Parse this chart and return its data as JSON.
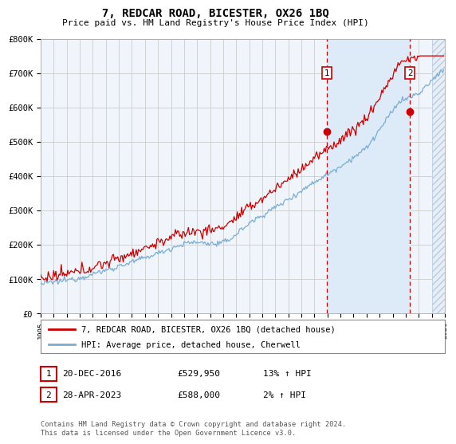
{
  "title": "7, REDCAR ROAD, BICESTER, OX26 1BQ",
  "subtitle": "Price paid vs. HM Land Registry's House Price Index (HPI)",
  "legend_line1": "7, REDCAR ROAD, BICESTER, OX26 1BQ (detached house)",
  "legend_line2": "HPI: Average price, detached house, Cherwell",
  "annotation1_date": "20-DEC-2016",
  "annotation1_price": "£529,950",
  "annotation1_hpi": "13% ↑ HPI",
  "annotation2_date": "28-APR-2023",
  "annotation2_price": "£588,000",
  "annotation2_hpi": "2% ↑ HPI",
  "footer": "Contains HM Land Registry data © Crown copyright and database right 2024.\nThis data is licensed under the Open Government Licence v3.0.",
  "hpi_color": "#7aadd4",
  "price_color": "#cc0000",
  "ylim": [
    0,
    800000
  ],
  "yticks": [
    0,
    100000,
    200000,
    300000,
    400000,
    500000,
    600000,
    700000,
    800000
  ],
  "ytick_labels": [
    "£0",
    "£100K",
    "£200K",
    "£300K",
    "£400K",
    "£500K",
    "£600K",
    "£700K",
    "£800K"
  ],
  "xmin_year": 1995,
  "xmax_year": 2026,
  "xticks": [
    1995,
    1996,
    1997,
    1998,
    1999,
    2000,
    2001,
    2002,
    2003,
    2004,
    2005,
    2006,
    2007,
    2008,
    2009,
    2010,
    2011,
    2012,
    2013,
    2014,
    2015,
    2016,
    2017,
    2018,
    2019,
    2020,
    2021,
    2022,
    2023,
    2024,
    2025,
    2026
  ],
  "sale1_x": 2016.97,
  "sale1_y": 529950,
  "sale2_x": 2023.33,
  "sale2_y": 588000,
  "background_color": "#ffffff",
  "plot_bg_color": "#f0f5fb",
  "highlight_color": "#ddeaf7",
  "hatch_region_start": 2025.0,
  "grid_color": "#cccccc"
}
